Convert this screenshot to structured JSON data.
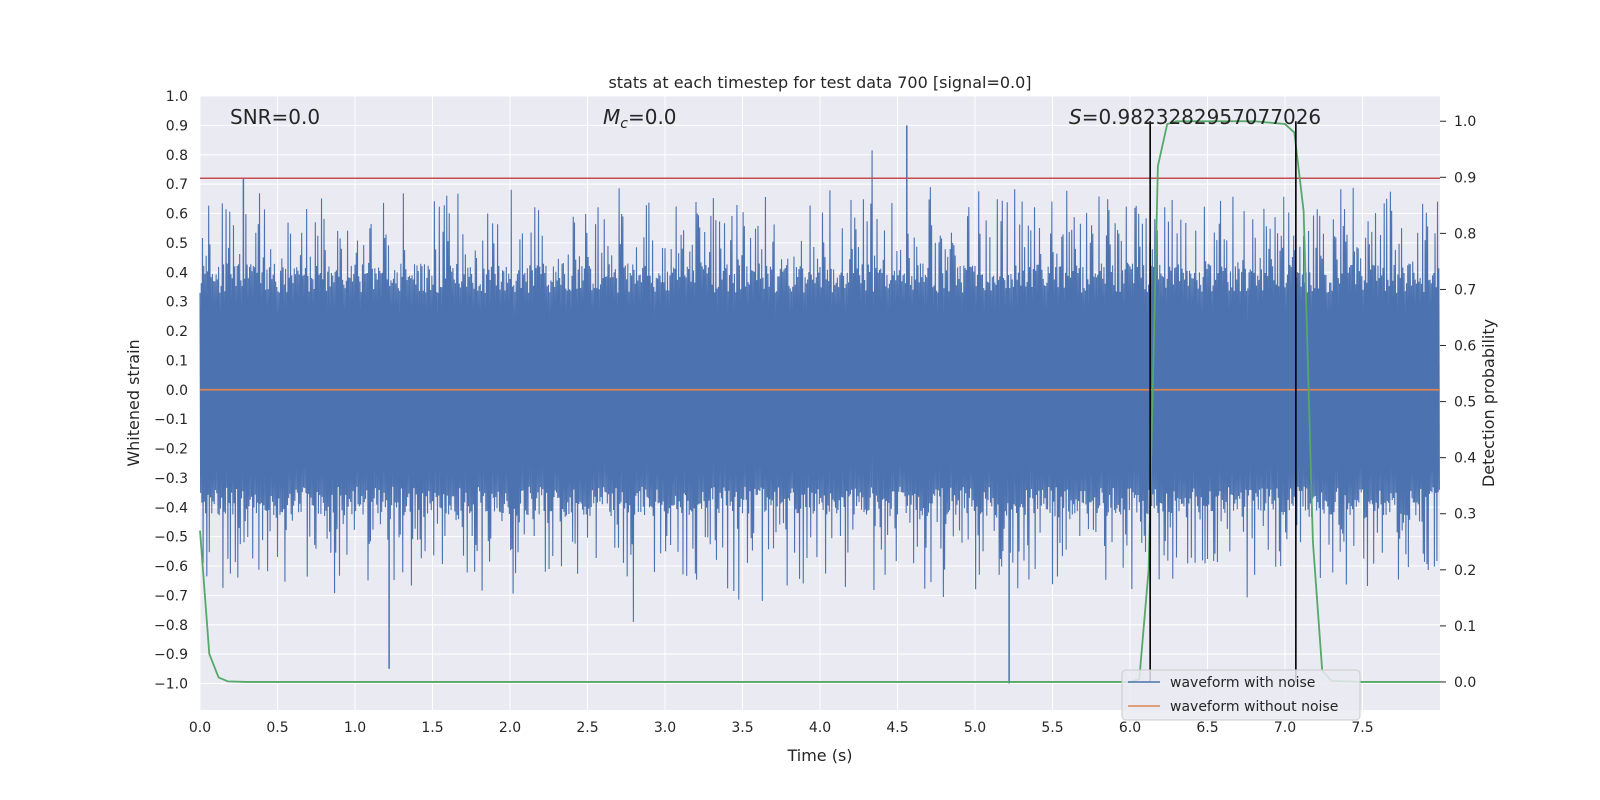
{
  "chart_data": {
    "type": "line",
    "title": "stats at each timestep for test data 700 [signal=0.0]",
    "xlabel": "Time (s)",
    "ylabel": "Whitened strain",
    "ylabel_right": "Detection probability",
    "xlim": [
      0.0,
      8.0
    ],
    "ylim": [
      -1.09,
      1.0
    ],
    "ylim_right": [
      -0.05,
      1.045
    ],
    "x_ticks": [
      0.0,
      0.5,
      1.0,
      1.5,
      2.0,
      2.5,
      3.0,
      3.5,
      4.0,
      4.5,
      5.0,
      5.5,
      6.0,
      6.5,
      7.0,
      7.5
    ],
    "x_tick_labels": [
      "0.0",
      "0.5",
      "1.0",
      "1.5",
      "2.0",
      "2.5",
      "3.0",
      "3.5",
      "4.0",
      "4.5",
      "5.0",
      "5.5",
      "6.0",
      "6.5",
      "7.0",
      "7.5"
    ],
    "y_ticks": [
      1.0,
      0.9,
      0.8,
      0.7,
      0.6,
      0.5,
      0.4,
      0.3,
      0.2,
      0.1,
      0.0,
      -0.1,
      -0.2,
      -0.3,
      -0.4,
      -0.5,
      -0.6,
      -0.7,
      -0.8,
      -0.9,
      -1.0
    ],
    "y_tick_labels": [
      "1.0",
      "0.9",
      "0.8",
      "0.7",
      "0.6",
      "0.5",
      "0.4",
      "0.3",
      "0.2",
      "0.1",
      "0.0",
      "−0.1",
      "−0.2",
      "−0.3",
      "−0.4",
      "−0.5",
      "−0.6",
      "−0.7",
      "−0.8",
      "−0.9",
      "−1.0"
    ],
    "y_ticks_right": [
      1.0,
      0.9,
      0.8,
      0.7,
      0.6,
      0.5,
      0.4,
      0.3,
      0.2,
      0.1,
      0.0
    ],
    "y_tick_labels_right": [
      "1.0",
      "0.9",
      "0.8",
      "0.7",
      "0.6",
      "0.5",
      "0.4",
      "0.3",
      "0.2",
      "0.1",
      "0.0"
    ],
    "annotations": {
      "snr": "SNR=0.0",
      "mc_symbol": "M",
      "mc_sub": "c",
      "mc_value": "=0.0",
      "s_symbol": "S",
      "s_value": "=0.9823282957077026"
    },
    "threshold_line": {
      "y": 0.72,
      "color": "#c44e52"
    },
    "detection_window": {
      "start": 6.13,
      "end": 7.07
    },
    "series": [
      {
        "name": "waveform with noise",
        "color": "#4c72b0",
        "envelope_core": 0.33,
        "spike_max": 0.9,
        "spike_min": -1.0
      },
      {
        "name": "waveform without noise",
        "color": "#dd8452",
        "value": 0.0
      },
      {
        "name": "detection probability",
        "color": "#55a868",
        "x": [
          0.0,
          0.06,
          0.12,
          0.18,
          0.3,
          0.6,
          1.0,
          6.0,
          6.06,
          6.12,
          6.18,
          6.24,
          6.3,
          6.5,
          6.8,
          7.0,
          7.06,
          7.12,
          7.18,
          7.24,
          7.3,
          7.5,
          8.0
        ],
        "y": [
          0.27,
          0.05,
          0.008,
          0.001,
          0.0,
          0.0,
          0.0,
          0.0,
          0.005,
          0.2,
          0.92,
          0.995,
          1.0,
          1.0,
          1.0,
          0.995,
          0.98,
          0.84,
          0.25,
          0.02,
          0.002,
          0.0,
          0.0
        ]
      }
    ],
    "legend": {
      "position": "bottom-right",
      "entries": [
        "waveform with noise",
        "waveform without noise"
      ]
    },
    "grid": true,
    "colors": {
      "axes_bg": "#eaeaf2",
      "grid": "#ffffff",
      "text": "#262626"
    }
  }
}
